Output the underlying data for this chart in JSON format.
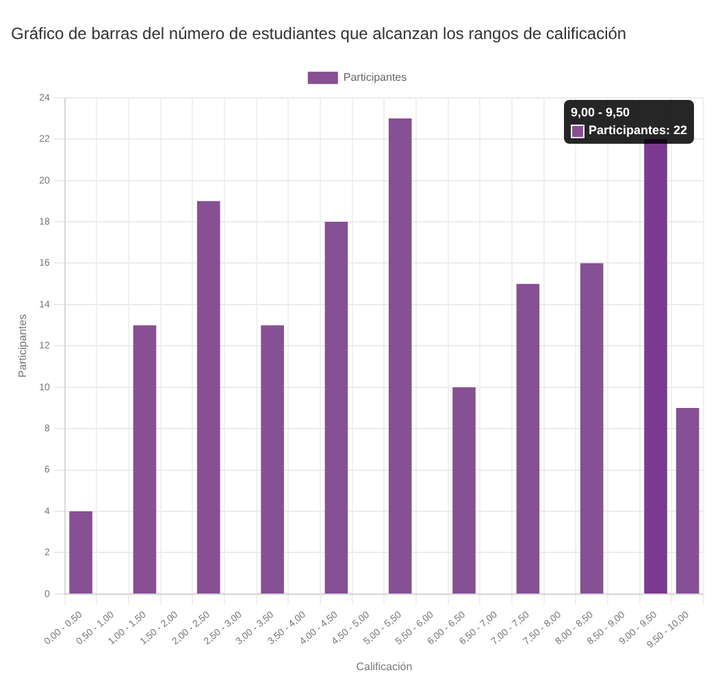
{
  "chart_data": {
    "type": "bar",
    "title": "Gráfico de barras del número de estudiantes que alcanzan los rangos de calificación",
    "xlabel": "Calificación",
    "ylabel": "Participantes",
    "categories": [
      "0,00 - 0,50",
      "0,50 - 1,00",
      "1,00 - 1,50",
      "1,50 - 2,00",
      "2,00 - 2,50",
      "2,50 - 3,00",
      "3,00 - 3,50",
      "3,50 - 4,00",
      "4,00 - 4,50",
      "4,50 - 5,00",
      "5,00 - 5,50",
      "5,50 - 6,00",
      "6,00 - 6,50",
      "6,50 - 7,00",
      "7,00 - 7,50",
      "7,50 - 8,00",
      "8,00 - 8,50",
      "8,50 - 9,00",
      "9,00 - 9,50",
      "9,50 - 10,00"
    ],
    "series": [
      {
        "name": "Participantes",
        "color": "#874f94",
        "colors": [
          "#874f94",
          "#874f94",
          "#874f94",
          "#874f94",
          "#874f94",
          "#874f94",
          "#874f94",
          "#874f94",
          "#874f94",
          "#874f94",
          "#874f94",
          "#874f94",
          "#874f94",
          "#874f94",
          "#874f94",
          "#874f94",
          "#874f94",
          "#874f94",
          "#7b3a92",
          "#874f94"
        ],
        "values": [
          4,
          0,
          13,
          0,
          19,
          0,
          13,
          0,
          18,
          0,
          23,
          0,
          10,
          0,
          15,
          0,
          16,
          0,
          22,
          9
        ]
      }
    ],
    "ylim": [
      0,
      24
    ],
    "yticks": [
      0,
      2,
      4,
      6,
      8,
      10,
      12,
      14,
      16,
      18,
      20,
      22,
      24
    ],
    "grid": true,
    "legend": "top",
    "annotations": [
      "9,00 - 9,50",
      "Participantes: 22"
    ]
  }
}
